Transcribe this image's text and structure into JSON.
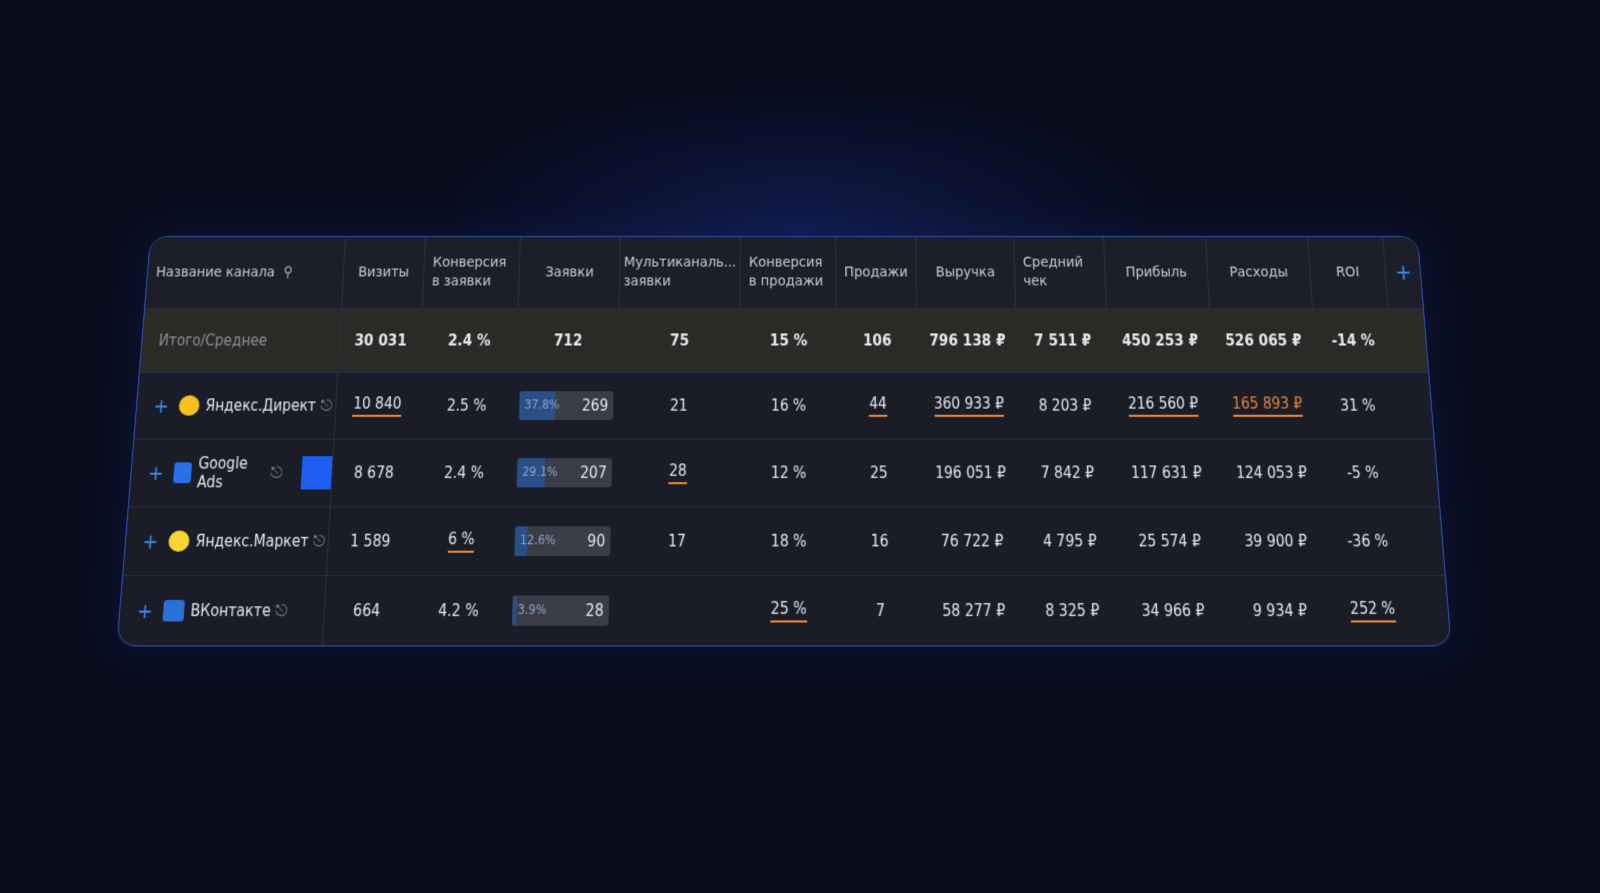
{
  "table": {
    "columns": [
      "Название канала",
      "Визиты",
      "Конверсия в заявки",
      "Заявки",
      "Мультиканаль... заявки",
      "Конверсия в продажи",
      "Продажи",
      "Выручка",
      "Средний чек",
      "Прибыль",
      "Расходы",
      "ROI"
    ],
    "totals": {
      "label": "Итого/Среднее",
      "values": [
        "30 031",
        "2.4 %",
        "712",
        "75",
        "15 %",
        "106",
        "796 138 ₽",
        "7 511 ₽",
        "450 253 ₽",
        "526 065 ₽",
        "-14 %"
      ]
    },
    "rows": [
      {
        "name": "Яндекс.Директ",
        "share": "37.8%",
        "values": [
          "10 840",
          "2.5 %",
          "269",
          "21",
          "16 %",
          "44",
          "360 933 ₽",
          "8 203 ₽",
          "216 560 ₽",
          "165 893 ₽",
          "31 %"
        ]
      },
      {
        "name": "Google Ads",
        "share": "29.1%",
        "values": [
          "8 678",
          "2.4 %",
          "207",
          "28",
          "12 %",
          "25",
          "196 051 ₽",
          "7 842 ₽",
          "117 631 ₽",
          "124 053 ₽",
          "-5 %"
        ]
      },
      {
        "name": "Яндекс.Маркет",
        "share": "12.6%",
        "values": [
          "1 589",
          "6 %",
          "90",
          "17",
          "18 %",
          "16",
          "76 722 ₽",
          "4 795 ₽",
          "25 574 ₽",
          "39 900 ₽",
          "-36 %"
        ]
      },
      {
        "name": "ВКонтакте",
        "share": "3.9%",
        "values": [
          "664",
          "4.2 %",
          "28",
          null,
          "25 %",
          "7",
          "58 277 ₽",
          "8 325 ₽",
          "34 966 ₽",
          "9 934 ₽",
          "252 %"
        ]
      }
    ]
  }
}
